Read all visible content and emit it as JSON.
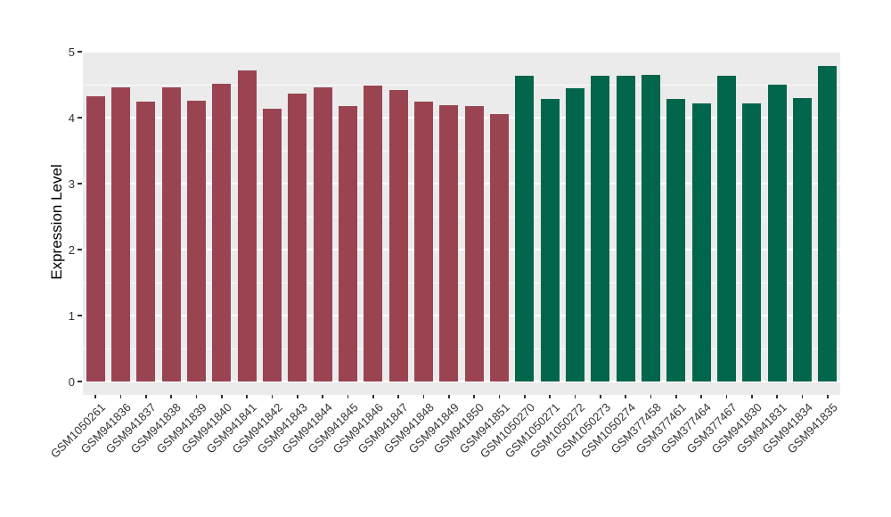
{
  "figure": {
    "background": "#ffffff",
    "panel_background": "#ebebeb",
    "gridline_color": "#ffffff",
    "axis_text_color": "#333333",
    "axis_title_color": "#000000"
  },
  "chart_data": {
    "type": "bar",
    "title": "",
    "xlabel": "",
    "ylabel": "Expression Level",
    "ylim": [
      0,
      5
    ],
    "yticks": [
      0,
      1,
      2,
      3,
      4,
      5
    ],
    "grid": true,
    "legend": false,
    "x_tick_rotation_deg": 45,
    "categories": [
      "GSM1050261",
      "GSM941836",
      "GSM941837",
      "GSM941838",
      "GSM941839",
      "GSM941840",
      "GSM941841",
      "GSM941842",
      "GSM941843",
      "GSM941844",
      "GSM941845",
      "GSM941846",
      "GSM941847",
      "GSM941848",
      "GSM941849",
      "GSM941850",
      "GSM941851",
      "GSM1050270",
      "GSM1050271",
      "GSM1050272",
      "GSM1050273",
      "GSM1050274",
      "GSM377458",
      "GSM377461",
      "GSM377464",
      "GSM377467",
      "GSM941830",
      "GSM941831",
      "GSM941834",
      "GSM941835"
    ],
    "values": [
      4.33,
      4.46,
      4.24,
      4.46,
      4.26,
      4.51,
      4.72,
      4.14,
      4.36,
      4.46,
      4.18,
      4.49,
      4.42,
      4.24,
      4.19,
      4.17,
      4.06,
      4.64,
      4.29,
      4.45,
      4.63,
      4.64,
      4.65,
      4.28,
      4.21,
      4.63,
      4.21,
      4.5,
      4.3,
      4.79
    ],
    "groups": [
      0,
      0,
      0,
      0,
      0,
      0,
      0,
      0,
      0,
      0,
      0,
      0,
      0,
      0,
      0,
      0,
      0,
      1,
      1,
      1,
      1,
      1,
      1,
      1,
      1,
      1,
      1,
      1,
      1,
      1
    ],
    "group_colors": [
      "#9a4452",
      "#01664b"
    ]
  }
}
